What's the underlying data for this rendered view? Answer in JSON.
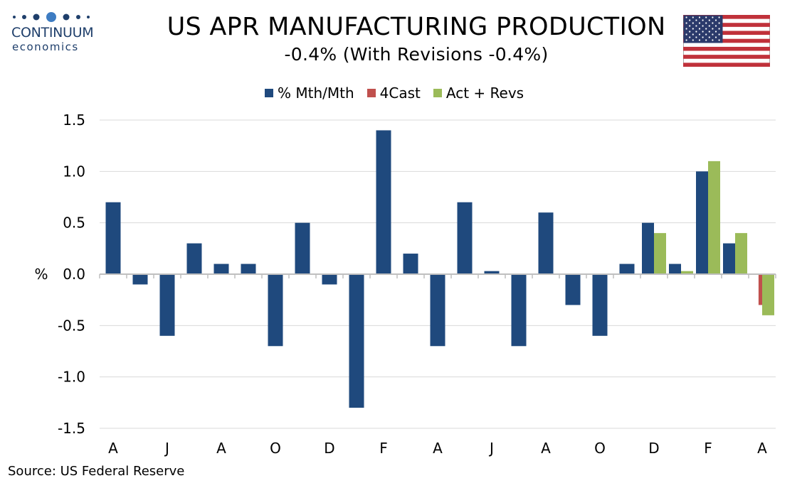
{
  "logo": {
    "word": "CONTINUUM",
    "sub": "economics",
    "icon": "dots-logo-icon",
    "color": "#1f3f6b"
  },
  "header": {
    "title": "US APR MANUFACTURING PRODUCTION",
    "subtitle": "-0.4% (With Revisions -0.4%)",
    "flag_icon": "us-flag-icon"
  },
  "source": "Source: US Federal Reserve",
  "colors": {
    "mth": "#1f497d",
    "forecast": "#c0504d",
    "actual": "#9bbb59",
    "grid": "#d9d9d9",
    "axis": "#bfbfbf"
  },
  "chart_data": {
    "type": "bar",
    "ylabel": "%",
    "ylim": [
      -1.5,
      1.5
    ],
    "yticks": [
      "1.5",
      "1.0",
      "0.5",
      "0.0",
      "-0.5",
      "-1.0",
      "-1.5"
    ],
    "ytick_values": [
      1.5,
      1.0,
      0.5,
      0.0,
      -0.5,
      -1.0,
      -1.5
    ],
    "grid": true,
    "legend_position": "top-center",
    "tick_labels": [
      "A",
      "J",
      "A",
      "O",
      "D",
      "F",
      "A",
      "J",
      "A",
      "O",
      "D",
      "F",
      "A"
    ],
    "tick_every": 2,
    "series": [
      {
        "name": "% Mth/Mth",
        "values": [
          0.7,
          -0.1,
          -0.6,
          0.3,
          0.1,
          0.1,
          -0.7,
          0.5,
          -0.1,
          -1.3,
          1.4,
          0.2,
          -0.7,
          0.7,
          0.03,
          -0.7,
          0.6,
          -0.3,
          -0.6,
          0.1,
          0.5,
          0.1,
          1.0,
          0.3,
          null
        ]
      },
      {
        "name": "4Cast",
        "values": [
          null,
          null,
          null,
          null,
          null,
          null,
          null,
          null,
          null,
          null,
          null,
          null,
          null,
          null,
          null,
          null,
          null,
          null,
          null,
          null,
          null,
          null,
          null,
          null,
          -0.3
        ]
      },
      {
        "name": "Act + Revs",
        "values": [
          null,
          null,
          null,
          null,
          null,
          null,
          null,
          null,
          null,
          null,
          null,
          null,
          null,
          null,
          null,
          null,
          null,
          null,
          null,
          null,
          0.4,
          0.03,
          1.1,
          0.4,
          -0.4
        ]
      }
    ]
  }
}
